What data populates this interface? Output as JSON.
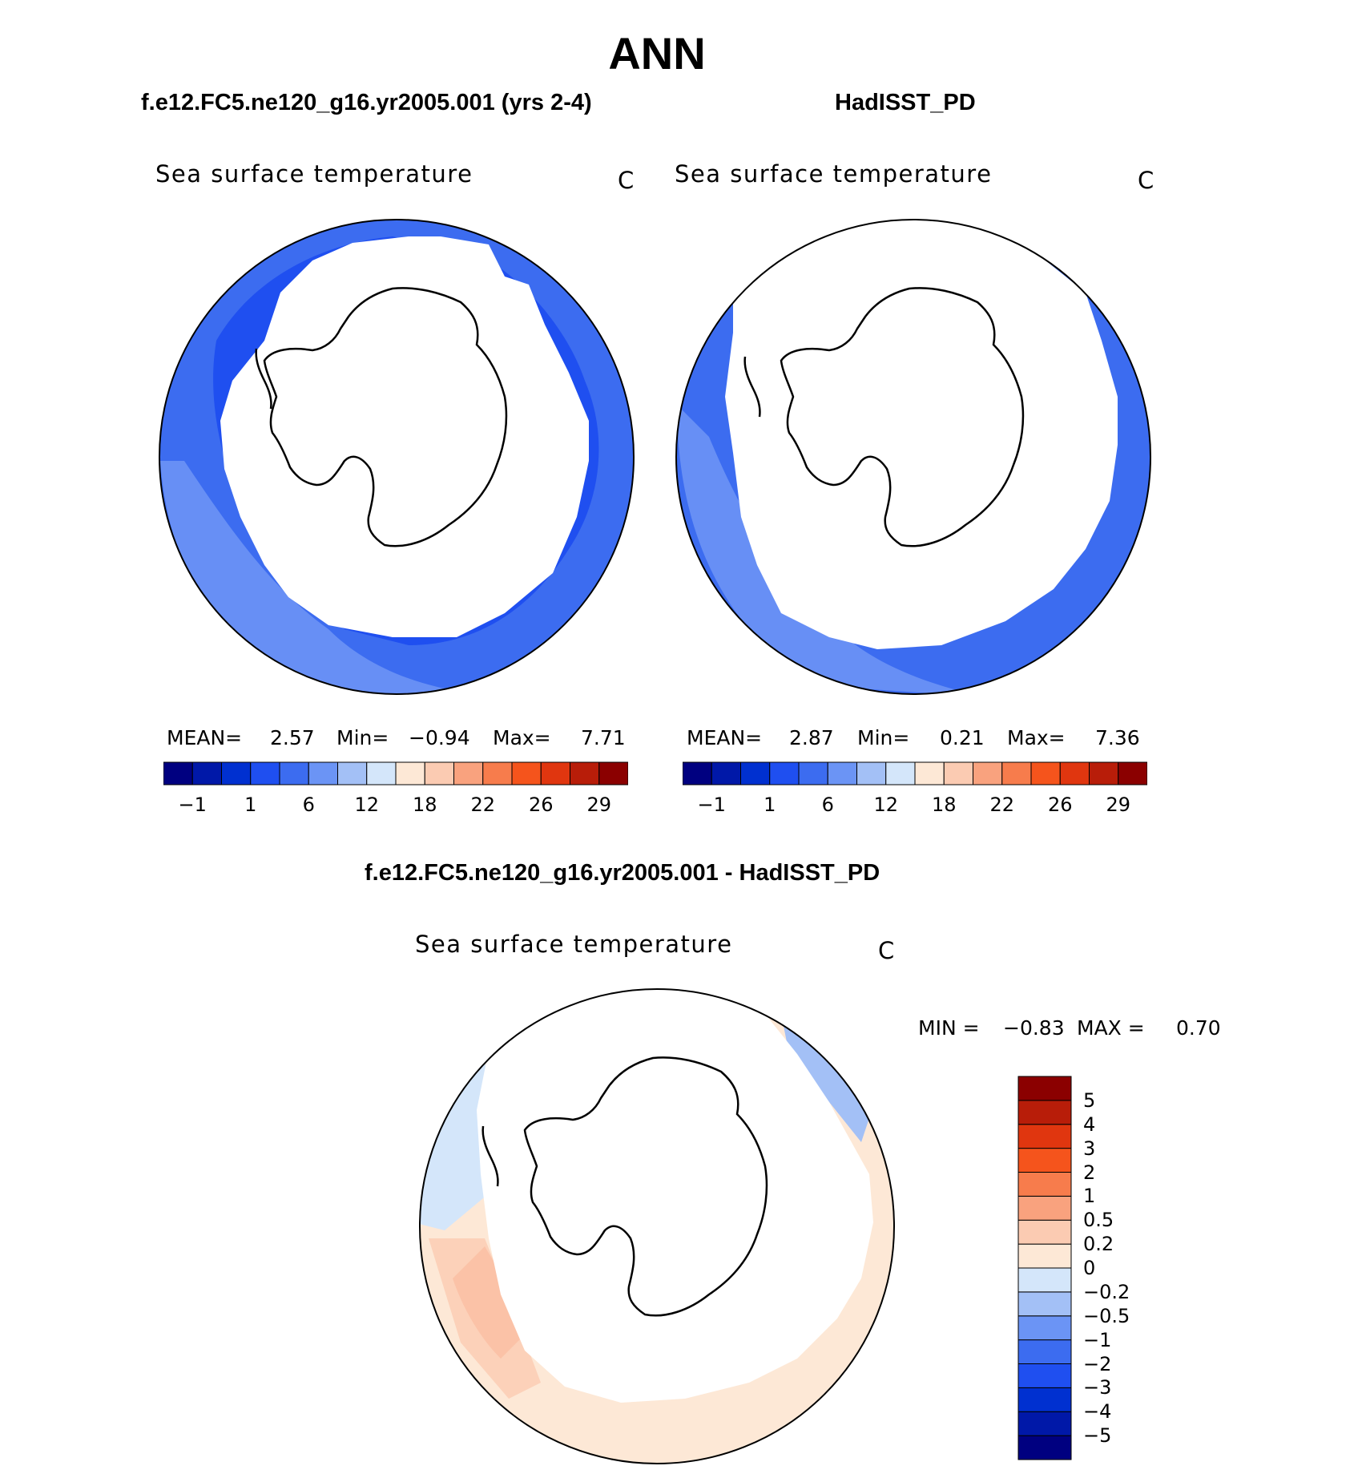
{
  "figure_title": "ANN",
  "panels": [
    {
      "title": "f.e12.FC5.ne120_g16.yr2005.001 (yrs 2-4)",
      "field_label": "Sea surface temperature",
      "units": "C",
      "stats": {
        "mean_label": "MEAN=",
        "mean": "2.57",
        "min_label": "Min=",
        "min": "−0.94",
        "max_label": "Max=",
        "max": "7.71"
      }
    },
    {
      "title": "HadISST_PD",
      "field_label": "Sea surface temperature",
      "units": "C",
      "stats": {
        "mean_label": "MEAN=",
        "mean": "2.87",
        "min_label": "Min=",
        "min": "0.21",
        "max_label": "Max=",
        "max": "7.36"
      }
    },
    {
      "title": "f.e12.FC5.ne120_g16.yr2005.001 - HadISST_PD",
      "field_label": "Sea surface temperature",
      "units": "C",
      "stats": {
        "min_label": "MIN =",
        "min": "−0.83",
        "max_label": "MAX =",
        "max": "0.70"
      }
    }
  ],
  "colorbar_abs": {
    "colors": [
      "#000080",
      "#0018a8",
      "#0030d0",
      "#1f4ff0",
      "#3c6cf0",
      "#6b94f5",
      "#a3c0f6",
      "#d4e6fa",
      "#fde8d6",
      "#fbcbb2",
      "#f9a27e",
      "#f77c4c",
      "#f5541c",
      "#e0360f",
      "#b81d09",
      "#8b0000"
    ],
    "labels": [
      "−1",
      "1",
      "6",
      "12",
      "18",
      "22",
      "26",
      "29"
    ]
  },
  "colorbar_diff": {
    "colors": [
      "#000080",
      "#0018a8",
      "#0030d0",
      "#1f4ff0",
      "#3c6cf0",
      "#6b94f5",
      "#a3c0f6",
      "#d4e6fa",
      "#fde8d6",
      "#fbcbb2",
      "#f9a27e",
      "#f77c4c",
      "#f5541c",
      "#e0360f",
      "#b81d09",
      "#8b0000"
    ],
    "labels": [
      "−5",
      "−4",
      "−3",
      "−2",
      "−1",
      "−0.5",
      "−0.2",
      "0",
      "0.2",
      "0.5",
      "1",
      "2",
      "3",
      "4",
      "5"
    ]
  }
}
